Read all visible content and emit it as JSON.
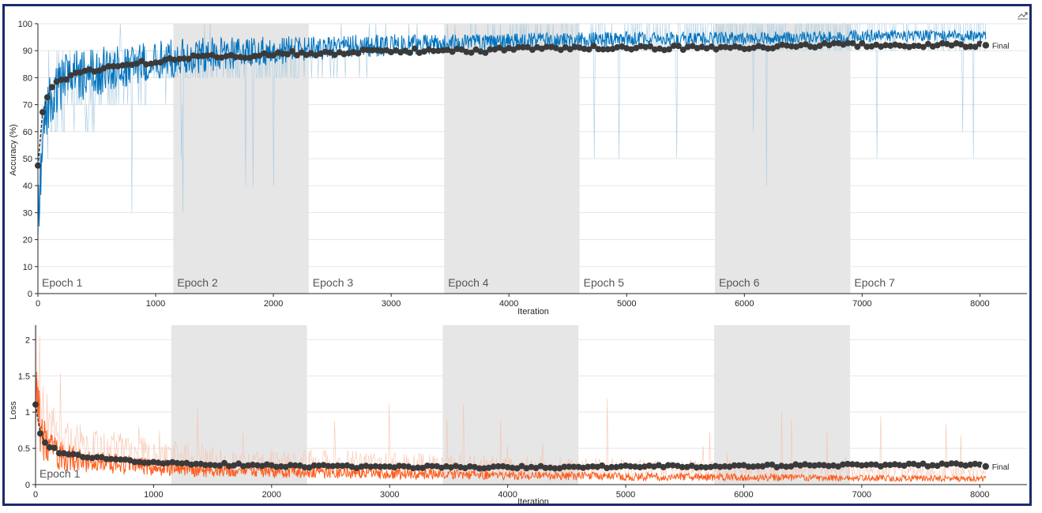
{
  "colors": {
    "accuracy_raw": "#a9cce3",
    "accuracy_smoothed": "#0072bd",
    "loss_raw": "#f7c3ad",
    "loss_smoothed": "#ff5a1a",
    "validation": "#3a3a3a",
    "epoch_shade": "#e6e6e6",
    "grid": "#e5e5e5",
    "frame": "#1d2a6b"
  },
  "toolbar": {
    "icon": "export-icon"
  },
  "chart_data": [
    {
      "type": "line",
      "xlabel": "Iteration",
      "ylabel": "Accuracy (%)",
      "xlim": [
        0,
        8400
      ],
      "ylim": [
        0,
        100
      ],
      "xticks": [
        "0",
        "1000",
        "2000",
        "3000",
        "4000",
        "5000",
        "6000",
        "7000",
        "8000"
      ],
      "yticks": [
        "0",
        "10",
        "20",
        "30",
        "40",
        "50",
        "60",
        "70",
        "80",
        "90",
        "100"
      ],
      "epoch_boundaries": [
        0,
        1150,
        2300,
        3450,
        4600,
        5750,
        6900,
        8050
      ],
      "epoch_labels": [
        "Epoch 1",
        "Epoch 2",
        "Epoch 3",
        "Epoch 4",
        "Epoch 5",
        "Epoch 6",
        "Epoch 7"
      ],
      "final_label": "Final",
      "series": [
        {
          "role": "training-raw",
          "x": [
            0,
            50,
            100,
            200,
            300,
            500,
            700,
            1000,
            1500,
            2000,
            2500,
            3000,
            3500,
            4000,
            5000,
            6000,
            7000,
            8050
          ],
          "values": [
            30,
            60,
            70,
            70,
            70,
            75,
            80,
            80,
            85,
            85,
            88,
            90,
            90,
            92,
            93,
            94,
            95,
            96
          ]
        },
        {
          "role": "training-smoothed",
          "x": [
            0,
            50,
            100,
            200,
            300,
            500,
            700,
            1000,
            1500,
            2000,
            2500,
            3000,
            3500,
            4000,
            5000,
            6000,
            7000,
            8050
          ],
          "values": [
            30,
            65,
            75,
            80,
            82,
            84,
            86,
            88,
            90,
            91,
            92,
            93,
            93,
            94,
            95,
            95,
            96,
            96
          ]
        },
        {
          "role": "validation",
          "x": [
            0,
            20,
            40,
            60,
            80,
            100,
            150,
            200,
            300,
            400,
            500,
            600,
            700,
            800,
            1000,
            1200,
            1500,
            1800,
            2000,
            2300,
            2500,
            2800,
            3000,
            3300,
            3500,
            3800,
            4000,
            4300,
            4600,
            5000,
            5500,
            6000,
            6500,
            7000,
            7500,
            8000,
            8050
          ],
          "values": [
            48,
            64,
            67,
            70,
            73,
            76,
            78,
            79,
            81,
            82,
            83,
            84,
            85,
            85,
            86,
            87,
            88,
            88,
            89,
            89,
            89,
            90,
            90,
            90,
            90,
            90,
            91,
            91,
            91,
            91,
            91,
            91,
            92,
            92,
            92,
            92,
            92
          ]
        }
      ]
    },
    {
      "type": "line",
      "xlabel": "Iteration",
      "ylabel": "Loss",
      "xlim": [
        0,
        8400
      ],
      "ylim": [
        0,
        2.2
      ],
      "xticks": [
        "0",
        "1000",
        "2000",
        "3000",
        "4000",
        "5000",
        "6000",
        "7000",
        "8000"
      ],
      "yticks": [
        "0",
        "0.5",
        "1",
        "1.5",
        "2"
      ],
      "epoch_boundaries": [
        0,
        1150,
        2300,
        3450,
        4600,
        5750,
        6900,
        8050
      ],
      "epoch_labels": [
        "Epoch 1"
      ],
      "final_label": "Final",
      "series": [
        {
          "role": "training-raw",
          "x": [
            0,
            50,
            100,
            200,
            400,
            700,
            1000,
            1500,
            2000,
            3000,
            4000,
            5000,
            6000,
            7000,
            8050
          ],
          "values": [
            1.7,
            0.9,
            0.7,
            0.55,
            0.45,
            0.4,
            0.35,
            0.3,
            0.28,
            0.25,
            0.22,
            0.2,
            0.18,
            0.17,
            0.16
          ]
        },
        {
          "role": "training-smoothed",
          "x": [
            0,
            50,
            100,
            200,
            400,
            700,
            1000,
            1500,
            2000,
            3000,
            4000,
            5000,
            6000,
            7000,
            8050
          ],
          "values": [
            1.2,
            0.7,
            0.5,
            0.4,
            0.33,
            0.28,
            0.25,
            0.2,
            0.18,
            0.15,
            0.13,
            0.11,
            0.1,
            0.09,
            0.08
          ]
        },
        {
          "role": "validation",
          "x": [
            0,
            20,
            40,
            60,
            100,
            150,
            200,
            300,
            400,
            500,
            700,
            1000,
            1500,
            2000,
            2500,
            3000,
            3500,
            4000,
            4500,
            5000,
            5500,
            6000,
            6500,
            7000,
            7500,
            8000,
            8050
          ],
          "values": [
            1.12,
            0.8,
            0.7,
            0.6,
            0.55,
            0.5,
            0.45,
            0.42,
            0.4,
            0.38,
            0.34,
            0.3,
            0.28,
            0.26,
            0.25,
            0.24,
            0.24,
            0.24,
            0.24,
            0.25,
            0.25,
            0.26,
            0.26,
            0.27,
            0.27,
            0.28,
            0.25
          ]
        }
      ]
    }
  ]
}
